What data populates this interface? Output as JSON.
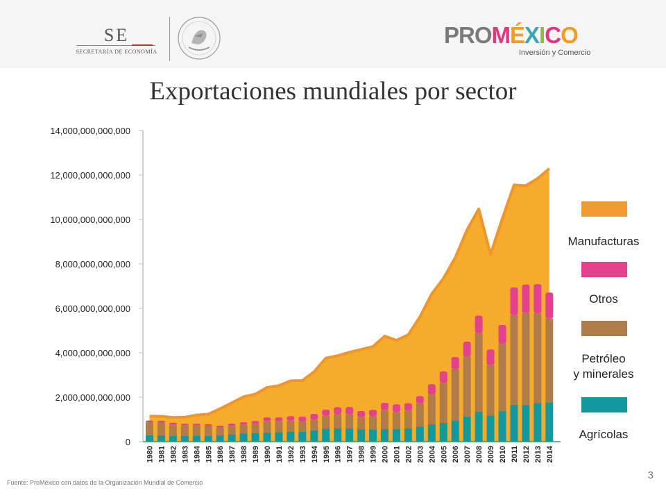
{
  "header": {
    "se_logo": {
      "abbr": "SE",
      "name": "SECRETARÍA DE ECONOMÍA"
    },
    "seal": {
      "name": "mexican-coat-of-arms"
    },
    "promexico": {
      "brand_pro": "PRO",
      "brand_mexico": "MÉXICO",
      "tagline": "Inversión y Comercio",
      "colors": {
        "pro": "#7a7a7a",
        "m": "#e0357f",
        "e": "#f39c1f",
        "x": "#3aa6b0",
        "i": "#8dbb3f",
        "c": "#e0357f",
        "o": "#f39c1f"
      }
    }
  },
  "page": {
    "title": "Exportaciones mundiales por sector",
    "source": "Fuente: ProMéxico con datos de la Organización Mundial de Comercio",
    "page_number": "3"
  },
  "chart_data": {
    "type": "bar",
    "title": "Exportaciones mundiales por sector",
    "xlabel": "",
    "ylabel": "",
    "ylim": [
      0,
      14000000000000
    ],
    "y_ticks": [
      "0",
      "2,000,000,000,000",
      "4,000,000,000,000",
      "6,000,000,000,000",
      "8,000,000,000,000",
      "10,000,000,000,000",
      "12,000,000,000,000",
      "14,000,000,000,000"
    ],
    "categories": [
      "1980",
      "1981",
      "1982",
      "1983",
      "1984",
      "1985",
      "1986",
      "1987",
      "1988",
      "1989",
      "1990",
      "1991",
      "1992",
      "1993",
      "1994",
      "1995",
      "1996",
      "1997",
      "1998",
      "1999",
      "2000",
      "2001",
      "2002",
      "2003",
      "2004",
      "2005",
      "2006",
      "2007",
      "2008",
      "2009",
      "2010",
      "2011",
      "2012",
      "2013",
      "2014"
    ],
    "area_series": {
      "name": "Manufacturas",
      "color": "#f5ab2c",
      "line_color": "#f0952a",
      "values": [
        1150000000000,
        1140000000000,
        1090000000000,
        1100000000000,
        1200000000000,
        1240000000000,
        1480000000000,
        1750000000000,
        2020000000000,
        2140000000000,
        2440000000000,
        2520000000000,
        2740000000000,
        2750000000000,
        3150000000000,
        3760000000000,
        3870000000000,
        4020000000000,
        4150000000000,
        4280000000000,
        4750000000000,
        4560000000000,
        4810000000000,
        5620000000000,
        6650000000000,
        7350000000000,
        8280000000000,
        9530000000000,
        10470000000000,
        8430000000000,
        10030000000000,
        11550000000000,
        11520000000000,
        11840000000000,
        12290000000000
      ]
    },
    "stacked_bars": [
      {
        "name": "Agrícolas",
        "color": "#12999e",
        "values": [
          290000000000,
          290000000000,
          260000000000,
          250000000000,
          270000000000,
          250000000000,
          280000000000,
          330000000000,
          370000000000,
          380000000000,
          410000000000,
          420000000000,
          450000000000,
          440000000000,
          500000000000,
          580000000000,
          600000000000,
          590000000000,
          560000000000,
          550000000000,
          560000000000,
          560000000000,
          600000000000,
          680000000000,
          780000000000,
          850000000000,
          950000000000,
          1130000000000,
          1350000000000,
          1180000000000,
          1370000000000,
          1660000000000,
          1660000000000,
          1740000000000,
          1750000000000
        ]
      },
      {
        "name": "Petróleo y minerales",
        "color": "#b07d4a",
        "values": [
          580000000000,
          570000000000,
          510000000000,
          480000000000,
          460000000000,
          450000000000,
          350000000000,
          380000000000,
          390000000000,
          430000000000,
          520000000000,
          500000000000,
          490000000000,
          460000000000,
          490000000000,
          580000000000,
          640000000000,
          640000000000,
          540000000000,
          590000000000,
          860000000000,
          780000000000,
          800000000000,
          1050000000000,
          1340000000000,
          1800000000000,
          2310000000000,
          2700000000000,
          3540000000000,
          2270000000000,
          3030000000000,
          4030000000000,
          4130000000000,
          4040000000000,
          3790000000000
        ]
      },
      {
        "name": "Otros",
        "color": "#e3418e",
        "values": [
          80000000000,
          80000000000,
          80000000000,
          80000000000,
          80000000000,
          80000000000,
          90000000000,
          100000000000,
          110000000000,
          120000000000,
          160000000000,
          170000000000,
          210000000000,
          230000000000,
          260000000000,
          280000000000,
          310000000000,
          330000000000,
          280000000000,
          290000000000,
          330000000000,
          340000000000,
          330000000000,
          320000000000,
          470000000000,
          510000000000,
          550000000000,
          670000000000,
          780000000000,
          700000000000,
          850000000000,
          1250000000000,
          1280000000000,
          1310000000000,
          1170000000000
        ]
      }
    ],
    "legend": {
      "placement": "right",
      "items": [
        {
          "label": "Manufacturas",
          "color": "#f39b30"
        },
        {
          "label": "Otros",
          "color": "#e3418e"
        },
        {
          "label": "Petróleo\ny minerales",
          "color": "#b07d4a"
        },
        {
          "label": "Agrícolas",
          "color": "#12999e"
        }
      ]
    },
    "grid": false
  }
}
